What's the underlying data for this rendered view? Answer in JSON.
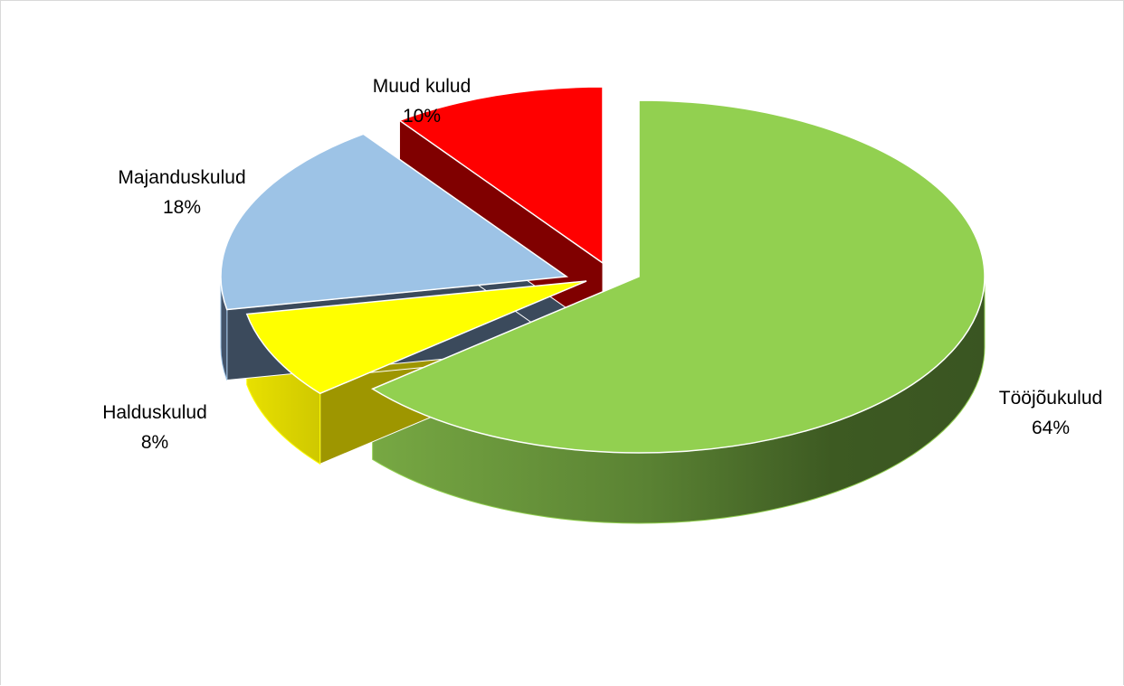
{
  "chart_data": {
    "type": "pie",
    "title": "",
    "style": "3d-exploded",
    "slices": [
      {
        "name": "Tööjõukulud",
        "value": 64,
        "label": "64%",
        "color": "#92d050"
      },
      {
        "name": "Halduskulud",
        "value": 8,
        "label": "8%",
        "color": "#ffff00"
      },
      {
        "name": "Majanduskulud",
        "value": 18,
        "label": "18%",
        "color": "#9dc3e6"
      },
      {
        "name": "Muud kulud",
        "value": 10,
        "label": "10%",
        "color": "#ff0000"
      }
    ]
  }
}
